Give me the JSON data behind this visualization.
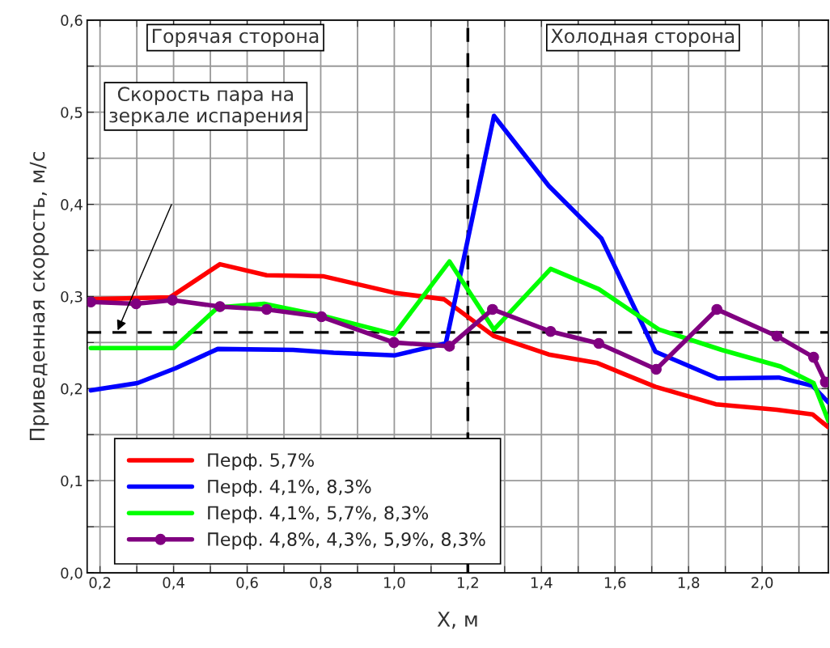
{
  "chart_data": {
    "type": "line",
    "xlabel": "X, м",
    "ylabel": "Приведенная скорость, м/с",
    "xlim": [
      0.165,
      2.18
    ],
    "ylim": [
      0,
      0.6
    ],
    "xticks": [
      {
        "value": 0.2,
        "label": "0,2"
      },
      {
        "value": 0.3,
        "label": null
      },
      {
        "value": 0.4,
        "label": "0,4"
      },
      {
        "value": 0.5,
        "label": null
      },
      {
        "value": 0.6,
        "label": "0,6"
      },
      {
        "value": 0.7,
        "label": null
      },
      {
        "value": 0.8,
        "label": "0,8"
      },
      {
        "value": 0.9,
        "label": null
      },
      {
        "value": 1.0,
        "label": "1,0"
      },
      {
        "value": 1.1,
        "label": null
      },
      {
        "value": 1.2,
        "label": "1,2"
      },
      {
        "value": 1.3,
        "label": null
      },
      {
        "value": 1.4,
        "label": "1,4"
      },
      {
        "value": 1.5,
        "label": null
      },
      {
        "value": 1.6,
        "label": "1,6"
      },
      {
        "value": 1.7,
        "label": null
      },
      {
        "value": 1.8,
        "label": "1,8"
      },
      {
        "value": 1.9,
        "label": null
      },
      {
        "value": 2.0,
        "label": "2,0"
      },
      {
        "value": 2.1,
        "label": null
      }
    ],
    "yticks": [
      {
        "value": 0.0,
        "label": "0,0"
      },
      {
        "value": 0.05,
        "label": null
      },
      {
        "value": 0.1,
        "label": "0,1"
      },
      {
        "value": 0.15,
        "label": null
      },
      {
        "value": 0.2,
        "label": "0,2"
      },
      {
        "value": 0.25,
        "label": null
      },
      {
        "value": 0.3,
        "label": "0,3"
      },
      {
        "value": 0.35,
        "label": null
      },
      {
        "value": 0.4,
        "label": "0,4"
      },
      {
        "value": 0.45,
        "label": null
      },
      {
        "value": 0.5,
        "label": "0,5"
      },
      {
        "value": 0.55,
        "label": null
      },
      {
        "value": 0.6,
        "label": "0,6"
      }
    ],
    "grid": true,
    "legend": "bottom left",
    "line_style": "solid",
    "series": [
      {
        "name": "Перф. 5,7%",
        "color": "#ff0000",
        "marker": "none",
        "x": [
          0.175,
          0.39,
          0.526,
          0.653,
          0.806,
          1.0,
          1.135,
          1.271,
          1.42,
          1.55,
          1.71,
          1.874,
          2.04,
          2.137,
          2.18
        ],
        "values": [
          0.297,
          0.299,
          0.335,
          0.323,
          0.322,
          0.304,
          0.297,
          0.257,
          0.237,
          0.228,
          0.202,
          0.183,
          0.177,
          0.172,
          0.158
        ]
      },
      {
        "name": "Перф. 4,1%, 8,3%",
        "color": "#0000ff",
        "marker": "none",
        "x": [
          0.175,
          0.302,
          0.405,
          0.52,
          0.725,
          0.835,
          1.0,
          1.107,
          1.14,
          1.271,
          1.42,
          1.563,
          1.71,
          1.88,
          2.045,
          2.137,
          2.18
        ],
        "values": [
          0.198,
          0.206,
          0.222,
          0.243,
          0.242,
          0.239,
          0.236,
          0.246,
          0.249,
          0.496,
          0.42,
          0.363,
          0.24,
          0.211,
          0.212,
          0.203,
          0.185
        ]
      },
      {
        "name": "Перф. 4,1%, 5,7%, 8,3%",
        "color": "#00ff00",
        "marker": "none",
        "x": [
          0.175,
          0.4,
          0.52,
          0.646,
          0.806,
          1.0,
          1.15,
          1.271,
          1.425,
          1.556,
          1.72,
          1.89,
          2.05,
          2.14,
          2.18
        ],
        "values": [
          0.244,
          0.244,
          0.288,
          0.292,
          0.279,
          0.259,
          0.338,
          0.264,
          0.33,
          0.308,
          0.264,
          0.242,
          0.224,
          0.206,
          0.165
        ]
      },
      {
        "name": "Перф. 4,8%, 4,3%, 5,9%, 8,3%",
        "color": "#800080",
        "marker": "circle",
        "x": [
          0.175,
          0.298,
          0.397,
          0.526,
          0.653,
          0.802,
          0.999,
          1.15,
          1.267,
          1.425,
          1.556,
          1.712,
          1.877,
          2.04,
          2.14,
          2.172
        ],
        "values": [
          0.294,
          0.292,
          0.296,
          0.289,
          0.286,
          0.278,
          0.25,
          0.246,
          0.286,
          0.262,
          0.249,
          0.221,
          0.286,
          0.257,
          0.234,
          0.207
        ]
      }
    ],
    "ref_lines": [
      {
        "axis": "y",
        "value": 0.261,
        "color": "#000000",
        "line_style": "dashed"
      },
      {
        "axis": "x",
        "value": 1.2,
        "color": "#000000",
        "line_style": "dashed"
      }
    ],
    "annotations": [
      "Горячая сторона",
      "Холодная сторона",
      "Скорость пара на\nзеркале испарения"
    ]
  }
}
